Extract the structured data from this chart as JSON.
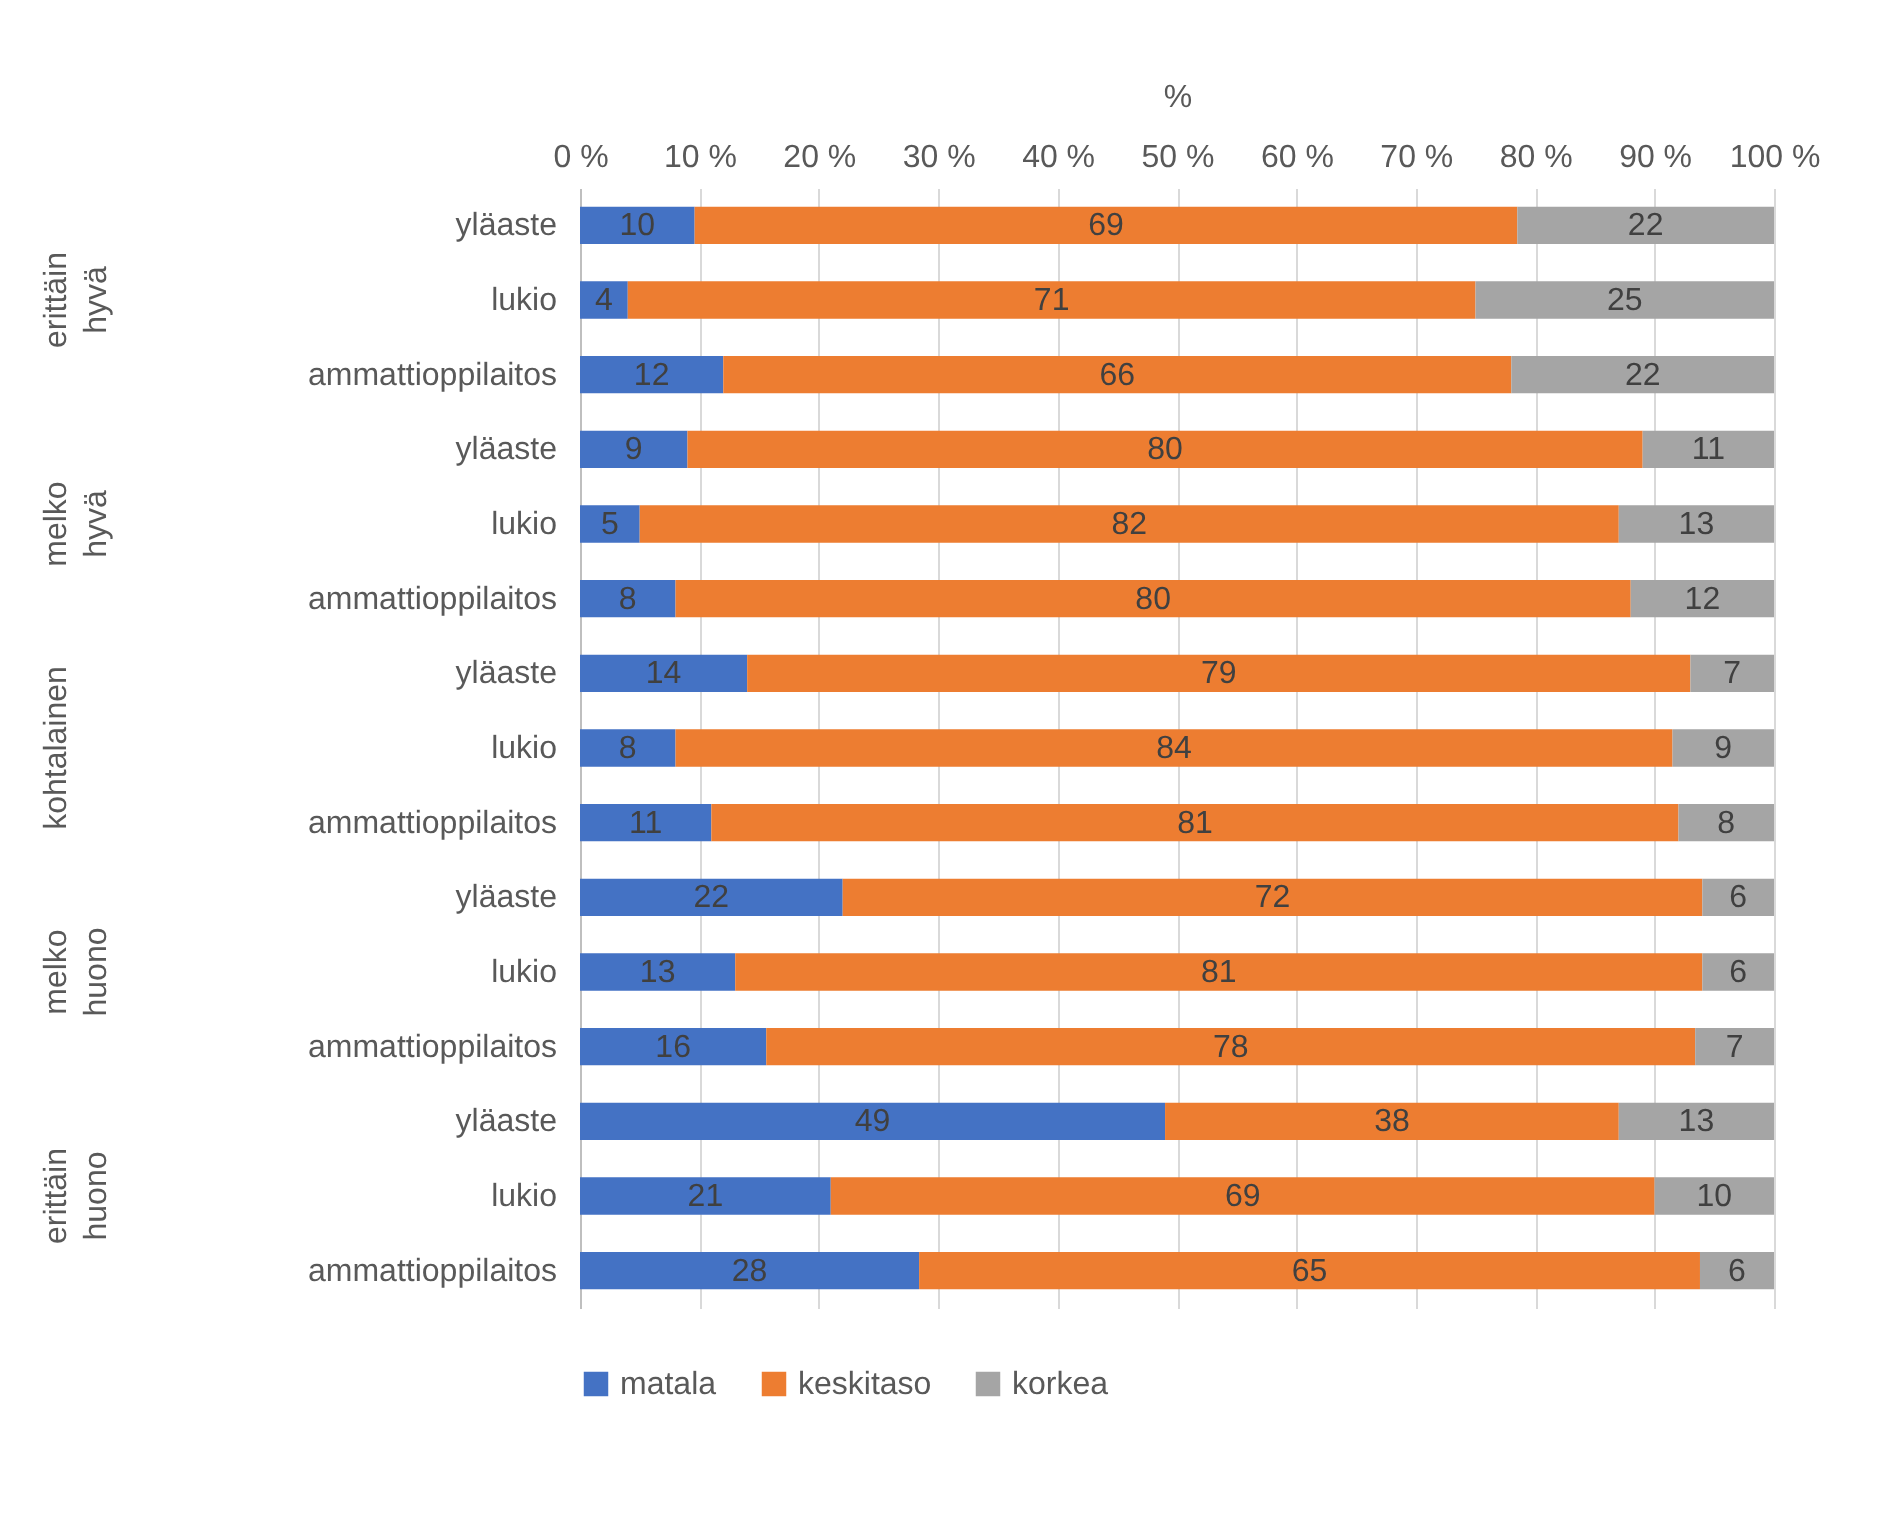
{
  "chart_data": {
    "type": "bar",
    "orientation": "horizontal",
    "stacked": true,
    "categories": [
      "yläaste",
      "lukio",
      "ammattioppilaitos",
      "yläaste",
      "lukio",
      "ammattioppilaitos",
      "yläaste",
      "lukio",
      "ammattioppilaitos",
      "yläaste",
      "lukio",
      "ammattioppilaitos",
      "yläaste",
      "lukio",
      "ammattioppilaitos"
    ],
    "series": [
      {
        "name": "matala",
        "color": "#4472c4",
        "values": [
          9.6,
          4,
          12,
          9,
          5,
          8,
          14,
          8,
          11,
          22,
          13,
          15.6,
          49,
          21,
          28.4
        ],
        "value_labels": [
          "10",
          "4",
          "12",
          "9",
          "5",
          "8",
          "14",
          "8",
          "11",
          "22",
          "13",
          "16",
          "49",
          "21",
          "28"
        ]
      },
      {
        "name": "keskitaso",
        "color": "#ed7d31",
        "values": [
          68.9,
          71,
          66,
          80,
          82,
          80,
          79,
          83.5,
          81,
          72,
          81,
          77.8,
          38,
          69,
          65.4
        ],
        "value_labels": [
          "69",
          "71",
          "66",
          "80",
          "82",
          "80",
          "79",
          "84",
          "81",
          "72",
          "81",
          "78",
          "38",
          "69",
          "65"
        ]
      },
      {
        "name": "korkea",
        "color": "#a5a5a5",
        "values": [
          21.5,
          25,
          22,
          11,
          13,
          12,
          7,
          8.5,
          8,
          6,
          6,
          6.6,
          13,
          10,
          6.2
        ],
        "value_labels": [
          "22",
          "25",
          "22",
          "11",
          "13",
          "12",
          "7",
          "9",
          "8",
          "6",
          "6",
          "7",
          "13",
          "10",
          "6"
        ]
      }
    ],
    "xlabel": "%",
    "xlim": [
      0,
      100
    ],
    "xticks": [
      {
        "value": 0,
        "label": "0 %"
      },
      {
        "value": 10,
        "label": "10 %"
      },
      {
        "value": 20,
        "label": "20 %"
      },
      {
        "value": 30,
        "label": "30 %"
      },
      {
        "value": 40,
        "label": "40 %"
      },
      {
        "value": 50,
        "label": "50 %"
      },
      {
        "value": 60,
        "label": "60 %"
      },
      {
        "value": 70,
        "label": "70 %"
      },
      {
        "value": 80,
        "label": "80 %"
      },
      {
        "value": 90,
        "label": "90 %"
      },
      {
        "value": 100,
        "label": "100 %"
      }
    ],
    "annotations": [
      "erittäin hyvä",
      "melko hyvä",
      "kohtalainen",
      "melko huono",
      "erittäin huono"
    ],
    "grid": "x",
    "legend": "bottom"
  }
}
